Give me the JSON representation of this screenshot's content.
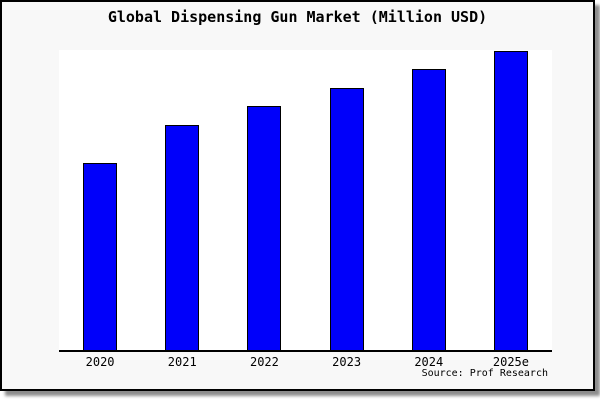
{
  "title": "Global Dispensing Gun Market (Million USD)",
  "source_credit": "Source: Prof Research",
  "colors": {
    "bar_fill": "#0000fa",
    "bar_border": "#000000",
    "card_background": "#f8f8f8",
    "plot_background": "#ffffff",
    "axis": "#000000",
    "text": "#000000"
  },
  "chart_data": {
    "type": "bar",
    "title": "Global Dispensing Gun Market (Million USD)",
    "categories": [
      "2020",
      "2021",
      "2022",
      "2023",
      "2024",
      "2025e"
    ],
    "values": [
      187,
      225,
      244,
      262,
      281,
      299
    ],
    "values_unit": "relative bar height (px); chart shows no y-axis scale or data labels",
    "xlabel": "",
    "ylabel": "",
    "ylim": [
      0,
      300
    ],
    "grid": false,
    "legend": false,
    "yaxis_visible": false,
    "layout": "single series of vertical blue bars with black outlines on white plot, x tick labels below axis, source credit bottom-right"
  }
}
